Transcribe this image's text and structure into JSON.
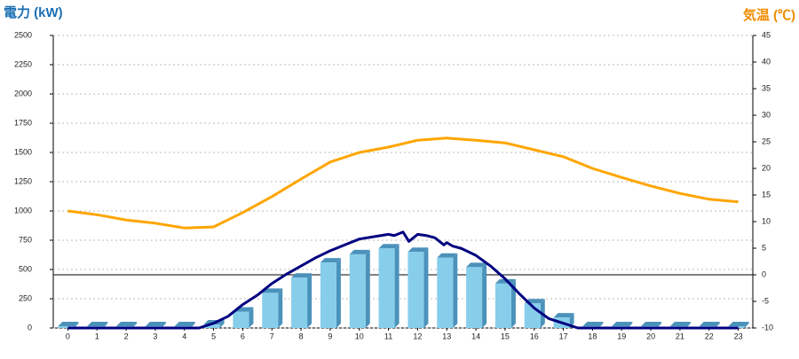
{
  "chart_data": {
    "type": "combo",
    "y_label": "電力 (kW)",
    "y2_label": "気温 (℃)",
    "categories": [
      "0",
      "1",
      "2",
      "3",
      "4",
      "5",
      "6",
      "7",
      "8",
      "9",
      "10",
      "11",
      "12",
      "13",
      "14",
      "15",
      "16",
      "17",
      "18",
      "19",
      "20",
      "21",
      "22",
      "23"
    ],
    "ylim": [
      0,
      2500
    ],
    "yticks": [
      0,
      250,
      500,
      750,
      1000,
      1250,
      1500,
      1750,
      2000,
      2250,
      2500
    ],
    "y2lim": [
      -10,
      45
    ],
    "y2ticks": [
      -10,
      -5,
      0,
      5,
      10,
      15,
      20,
      25,
      30,
      35,
      40,
      45
    ],
    "grid": true,
    "hlines": [
      {
        "axis": "y2",
        "value": 0,
        "color": "#000000"
      }
    ],
    "series": [
      {
        "type": "bar",
        "color": "#87ceeb",
        "side_color": "#4b92bb",
        "values": [
          15,
          15,
          15,
          15,
          15,
          30,
          140,
          300,
          430,
          560,
          630,
          680,
          650,
          600,
          520,
          380,
          210,
          90,
          15,
          15,
          15,
          15,
          15,
          15
        ]
      },
      {
        "type": "line",
        "color": "#000080",
        "x": [
          0,
          4.5,
          5,
          5.5,
          6,
          6.5,
          7,
          7.5,
          8,
          8.5,
          9,
          9.5,
          10,
          10.5,
          11,
          11.2,
          11.5,
          11.7,
          12,
          12.3,
          12.6,
          12.9,
          13,
          13.2,
          13.5,
          14,
          14.5,
          15,
          15.5,
          16,
          16.5,
          17,
          17.5,
          18,
          23
        ],
        "values": [
          0,
          0,
          40,
          100,
          200,
          280,
          380,
          460,
          530,
          600,
          660,
          710,
          760,
          780,
          800,
          790,
          820,
          740,
          800,
          790,
          770,
          710,
          730,
          700,
          680,
          620,
          530,
          420,
          290,
          170,
          80,
          40,
          0,
          0,
          0
        ]
      },
      {
        "type": "line",
        "axis": "y2",
        "color": "#ffa500",
        "values": [
          12,
          11.3,
          10.3,
          9.7,
          8.8,
          9,
          11.7,
          14.7,
          18,
          21.2,
          23,
          24,
          25.3,
          25.7,
          25.3,
          24.8,
          23.5,
          22.2,
          20,
          18.3,
          16.7,
          15.3,
          14.2,
          13.7
        ]
      }
    ]
  }
}
